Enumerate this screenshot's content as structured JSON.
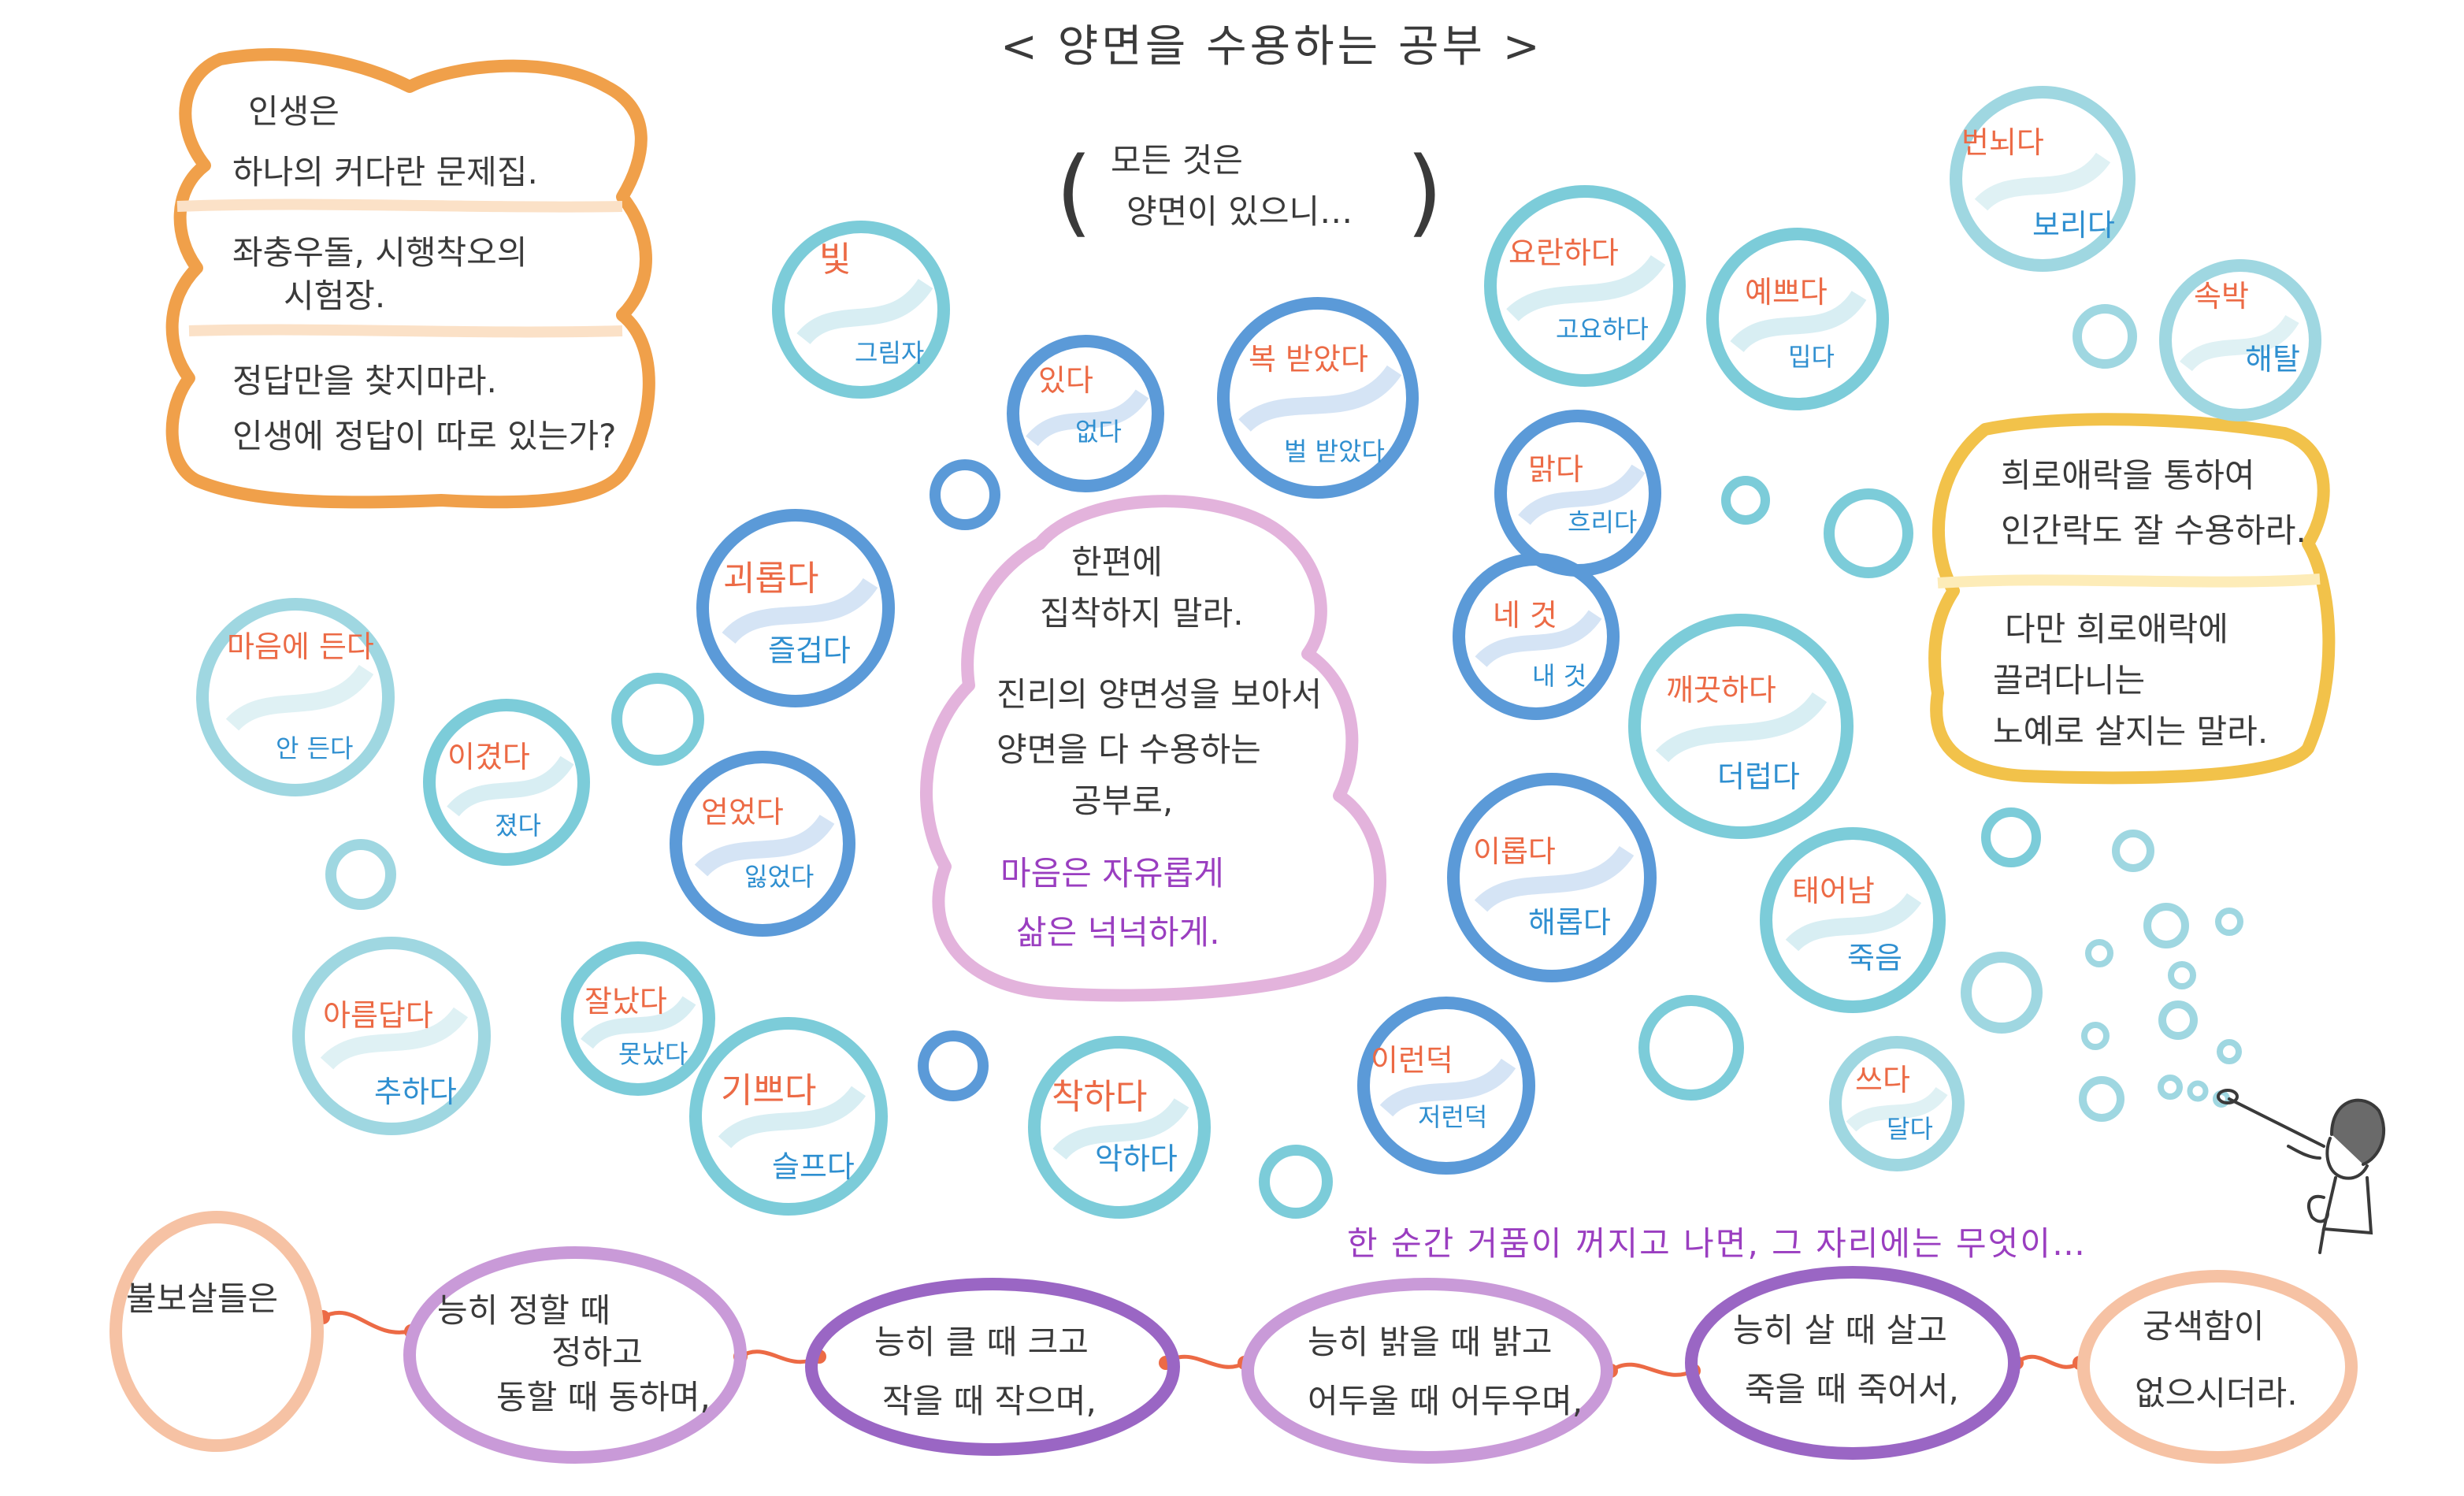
{
  "title": "< 양면을 수용하는 공부 >",
  "subtitle": {
    "line1": "모든 것은",
    "line2": "양면이 있으니…",
    "bracket_open": "(",
    "bracket_close": ")"
  },
  "left_box": {
    "line1": "인생은",
    "line2": "하나의 커다란 문제집.",
    "line3": "좌충우돌, 시행착오의",
    "line4": "시험장.",
    "line5": "정답만을 찾지마라.",
    "line6": "인생에 정답이 따로 있는가?"
  },
  "right_box": {
    "line1": "희로애락을 통하여",
    "line2": "인간락도 잘 수용하라.",
    "line3": "다만 희로애락에",
    "line4": "끌려다니는",
    "line5": "노예로 살지는 말라."
  },
  "center_box": {
    "line1": "한편에",
    "line2": "집착하지 말라.",
    "line3": "진리의 양면성을 보아서",
    "line4": "양면을 다 수용하는",
    "line5": "공부로,",
    "line6": "마음은 자유롭게",
    "line7": "삶은 넉넉하게."
  },
  "bubbles": [
    {
      "top": "빛",
      "bottom": "그림자"
    },
    {
      "top": "있다",
      "bottom": "없다"
    },
    {
      "top": "복 받았다",
      "bottom": "벌 받았다"
    },
    {
      "top": "괴롭다",
      "bottom": "즐겁다"
    },
    {
      "top": "마음에 든다",
      "bottom": "안 든다"
    },
    {
      "top": "이겼다",
      "bottom": "졌다"
    },
    {
      "top": "얻었다",
      "bottom": "잃었다"
    },
    {
      "top": "아름답다",
      "bottom": "추하다"
    },
    {
      "top": "잘났다",
      "bottom": "못났다"
    },
    {
      "top": "기쁘다",
      "bottom": "슬프다"
    },
    {
      "top": "착하다",
      "bottom": "악하다"
    },
    {
      "top": "이런덕",
      "bottom": "저런덕"
    },
    {
      "top": "요란하다",
      "bottom": "고요하다"
    },
    {
      "top": "예쁘다",
      "bottom": "밉다"
    },
    {
      "top": "맑다",
      "bottom": "흐리다"
    },
    {
      "top": "네 것",
      "bottom": "내 것"
    },
    {
      "top": "깨끗하다",
      "bottom": "더럽다"
    },
    {
      "top": "이롭다",
      "bottom": "해롭다"
    },
    {
      "top": "태어남",
      "bottom": "죽음"
    },
    {
      "top": "쓰다",
      "bottom": "달다"
    },
    {
      "top": "번뇌다",
      "bottom": "보리다"
    },
    {
      "top": "속박",
      "bottom": "해탈"
    }
  ],
  "bottom_note": "한 순간 거품이 꺼지고 나면, 그 자리에는 무엇이…",
  "chain": [
    {
      "line1": "불보살들은",
      "line2": ""
    },
    {
      "line1": "능히 정할 때",
      "line2": "정하고",
      "line3": "동할 때 동하며,"
    },
    {
      "line1": "능히 클 때 크고",
      "line2": "작을 때 작으며,"
    },
    {
      "line1": "능히 밝을 때 밝고",
      "line2": "어두울 때 어두우며,"
    },
    {
      "line1": "능히 살 때 살고",
      "line2": "죽을 때 죽어서,"
    },
    {
      "line1": "궁색함이",
      "line2": "없으시더라."
    }
  ],
  "colors": {
    "orange": "#ec6a45",
    "blue": "#2f8fd0",
    "purple": "#9a3ec0",
    "lightblue_ring": "#7cccd9",
    "darkblue_ring": "#5b9ad8",
    "orange_box": "#f0a04a",
    "yellow_box": "#f2c24a",
    "pink_box": "#e3b3dc",
    "chain_ring": "#c99ad8",
    "peach_ring": "#f6c2a4"
  },
  "icons": [
    "boy-blowing-bubbles-icon"
  ]
}
